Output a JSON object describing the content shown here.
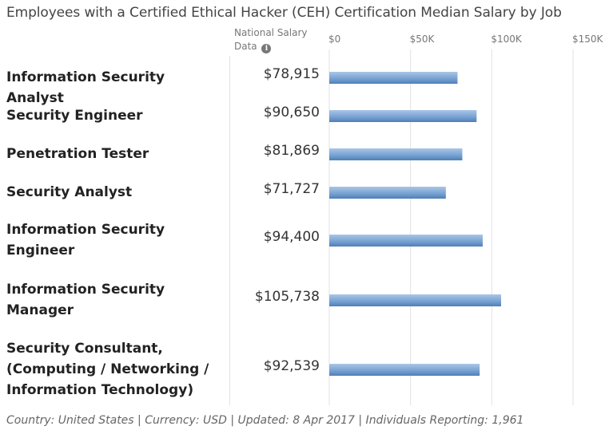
{
  "chart_data": {
    "type": "bar",
    "orientation": "horizontal",
    "title": "Employees with a Certified Ethical Hacker (CEH) Certification Median Salary by Job",
    "value_column_header": "National Salary Data",
    "categories": [
      [
        "Information Security Analyst"
      ],
      [
        "Security Engineer"
      ],
      [
        "Penetration Tester"
      ],
      [
        "Security Analyst"
      ],
      [
        "Information Security",
        "Engineer"
      ],
      [
        "Information Security",
        "Manager"
      ],
      [
        "Security Consultant,",
        "(Computing / Networking /",
        "Information Technology)"
      ]
    ],
    "values": [
      78915,
      90650,
      81869,
      71727,
      94400,
      105738,
      92539
    ],
    "value_labels": [
      "$78,915",
      "$90,650",
      "$81,869",
      "$71,727",
      "$94,400",
      "$105,738",
      "$92,539"
    ],
    "xlim": [
      0,
      150000
    ],
    "xticks": [
      0,
      50000,
      100000,
      150000
    ],
    "xtick_labels": [
      "$0",
      "$50K",
      "$100K",
      "$150K"
    ],
    "grid": true,
    "bar_color": "#6f9bcc",
    "footer": "Country: United States | Currency: USD | Updated: 8 Apr 2017 | Individuals Reporting: 1,961"
  }
}
